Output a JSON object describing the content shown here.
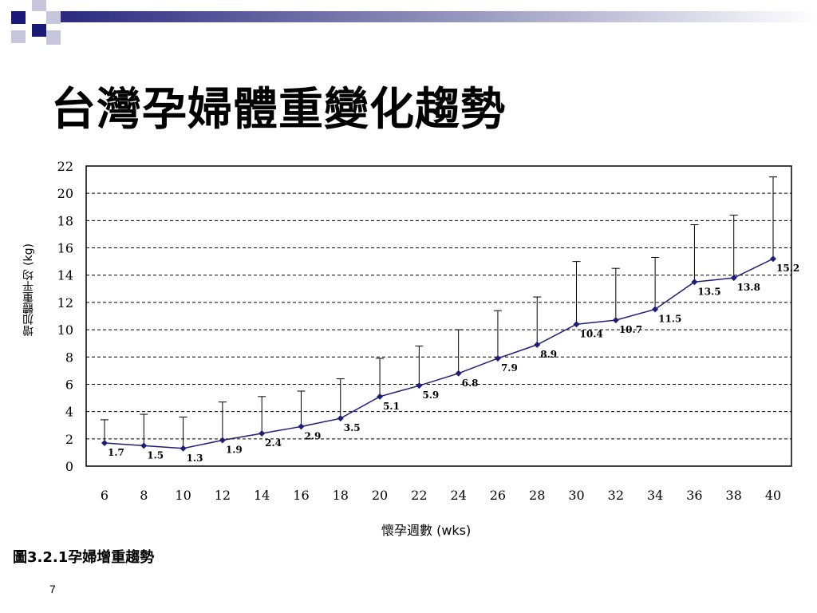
{
  "slide": {
    "title": "台灣孕婦體重變化趨勢",
    "page_number": "7",
    "caption": "圖3.2.1孕婦增重趨勢"
  },
  "colors": {
    "line": "#1f1f7a",
    "marker": "#1f1f7a",
    "error_bar": "#000000",
    "grid": "#000000",
    "deco_dark": "#1a1a78",
    "deco_light": "#c6c6dc"
  },
  "chart_data": {
    "type": "line",
    "title": "",
    "xlabel": "懷孕週數 (wks)",
    "ylabel": "增加體重平均 (kg)",
    "x": [
      6,
      8,
      10,
      12,
      14,
      16,
      18,
      20,
      22,
      24,
      26,
      28,
      30,
      32,
      34,
      36,
      38,
      40
    ],
    "series": [
      {
        "name": "",
        "values": [
          1.7,
          1.5,
          1.3,
          1.9,
          2.4,
          2.9,
          3.5,
          5.1,
          5.9,
          6.8,
          7.9,
          8.9,
          10.4,
          10.7,
          11.5,
          13.5,
          13.8,
          15.2
        ],
        "data_labels": [
          "1.7",
          "1.5",
          "1.3",
          "1.9",
          "2.4",
          "2.9",
          "3.5",
          "5.1",
          "5.9",
          "6.8",
          "7.9",
          "8.9",
          "10.4",
          "10.7",
          "11.5",
          "13.5",
          "13.8",
          "15.2"
        ],
        "error_upper": [
          3.4,
          3.8,
          3.6,
          4.7,
          5.1,
          5.5,
          6.4,
          7.9,
          8.8,
          10.0,
          11.4,
          12.4,
          15.0,
          14.5,
          15.3,
          17.7,
          18.4,
          21.2
        ]
      }
    ],
    "xlim": [
      6,
      40
    ],
    "ylim": [
      0,
      22
    ],
    "yticks": [
      0,
      2,
      4,
      6,
      8,
      10,
      12,
      14,
      16,
      18,
      20,
      22
    ],
    "grid": "horizontal-dashed",
    "legend": "none"
  }
}
